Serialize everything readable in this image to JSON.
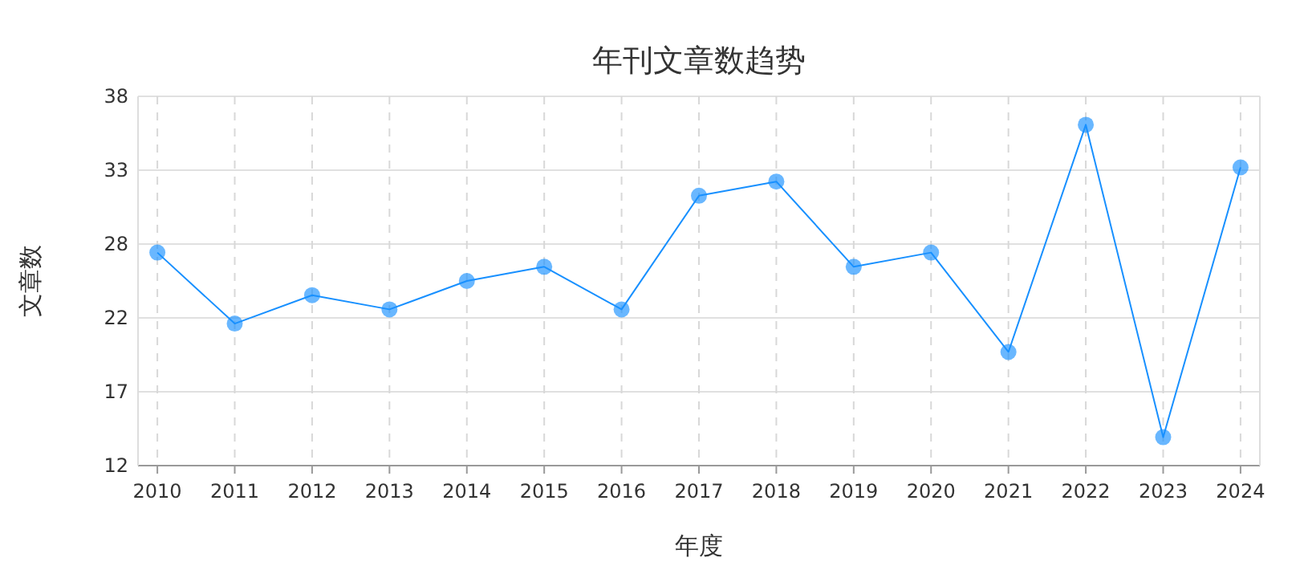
{
  "chart_data": {
    "type": "line",
    "title": "年刊文章数趋势",
    "xlabel": "年度",
    "ylabel": "文章数",
    "categories": [
      "2010",
      "2011",
      "2012",
      "2013",
      "2014",
      "2015",
      "2016",
      "2017",
      "2018",
      "2019",
      "2020",
      "2021",
      "2022",
      "2023",
      "2024"
    ],
    "series": [
      {
        "color": "#1890ff",
        "values": [
          27,
          22,
          24,
          23,
          25,
          26,
          23,
          31,
          32,
          26,
          27,
          20,
          36,
          14,
          33
        ]
      }
    ],
    "ylim": [
      12,
      38
    ],
    "yticks": [
      12,
      {
        "value": 17.2,
        "label": "17"
      },
      {
        "value": 22.4,
        "label": "22"
      },
      {
        "value": 27.6,
        "label": "28"
      },
      {
        "value": 32.8,
        "label": "33"
      },
      38
    ],
    "grid": true,
    "marker": "circle",
    "line_style": "solid"
  }
}
